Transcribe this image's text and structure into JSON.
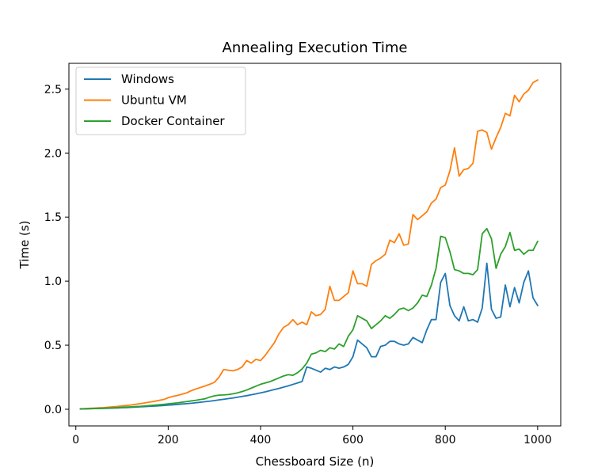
{
  "chart_data": {
    "type": "line",
    "title": "Annealing Execution Time",
    "xlabel": "Chessboard Size (n)",
    "ylabel": "Time (s)",
    "xlim": [
      -15,
      1050
    ],
    "ylim": [
      -0.13,
      2.7
    ],
    "x_ticks": [
      0,
      200,
      400,
      600,
      800,
      1000
    ],
    "x_tick_labels": [
      "0",
      "200",
      "400",
      "600",
      "800",
      "1000"
    ],
    "y_ticks": [
      0.0,
      0.5,
      1.0,
      1.5,
      2.0,
      2.5
    ],
    "y_tick_labels": [
      "0.0",
      "0.5",
      "1.0",
      "1.5",
      "2.0",
      "2.5"
    ],
    "grid": false,
    "legend_position": "upper-left",
    "x": [
      10,
      20,
      30,
      40,
      50,
      60,
      70,
      80,
      90,
      100,
      110,
      120,
      130,
      140,
      150,
      160,
      170,
      180,
      190,
      200,
      210,
      220,
      230,
      240,
      250,
      260,
      270,
      280,
      290,
      300,
      310,
      320,
      330,
      340,
      350,
      360,
      370,
      380,
      390,
      400,
      410,
      420,
      430,
      440,
      450,
      460,
      470,
      480,
      490,
      500,
      510,
      520,
      530,
      540,
      550,
      560,
      570,
      580,
      590,
      600,
      610,
      620,
      630,
      640,
      650,
      660,
      670,
      680,
      690,
      700,
      710,
      720,
      730,
      740,
      750,
      760,
      770,
      780,
      790,
      800,
      810,
      820,
      830,
      840,
      850,
      860,
      870,
      880,
      890,
      900,
      910,
      920,
      930,
      940,
      950,
      960,
      970,
      980,
      990,
      1000
    ],
    "series": [
      {
        "name": "Windows",
        "color": "#1f77b4",
        "values": [
          0.002,
          0.003,
          0.004,
          0.005,
          0.006,
          0.007,
          0.008,
          0.009,
          0.01,
          0.012,
          0.013,
          0.015,
          0.017,
          0.019,
          0.021,
          0.023,
          0.025,
          0.027,
          0.029,
          0.032,
          0.035,
          0.038,
          0.041,
          0.044,
          0.047,
          0.051,
          0.055,
          0.059,
          0.063,
          0.068,
          0.073,
          0.078,
          0.083,
          0.088,
          0.094,
          0.1,
          0.106,
          0.113,
          0.12,
          0.128,
          0.136,
          0.145,
          0.154,
          0.163,
          0.173,
          0.183,
          0.194,
          0.205,
          0.217,
          0.33,
          0.32,
          0.305,
          0.29,
          0.32,
          0.31,
          0.33,
          0.32,
          0.33,
          0.35,
          0.41,
          0.54,
          0.51,
          0.48,
          0.41,
          0.41,
          0.49,
          0.5,
          0.53,
          0.53,
          0.51,
          0.5,
          0.51,
          0.56,
          0.54,
          0.52,
          0.62,
          0.7,
          0.7,
          0.99,
          1.06,
          0.81,
          0.73,
          0.69,
          0.8,
          0.69,
          0.7,
          0.68,
          0.79,
          1.14,
          0.78,
          0.71,
          0.72,
          0.97,
          0.8,
          0.95,
          0.83,
          0.99,
          1.08,
          0.87,
          0.81
        ]
      },
      {
        "name": "Ubuntu VM",
        "color": "#ff7f0e",
        "values": [
          0.004,
          0.005,
          0.007,
          0.009,
          0.011,
          0.013,
          0.016,
          0.019,
          0.022,
          0.026,
          0.03,
          0.034,
          0.039,
          0.044,
          0.05,
          0.056,
          0.062,
          0.069,
          0.076,
          0.09,
          0.1,
          0.108,
          0.118,
          0.128,
          0.145,
          0.158,
          0.17,
          0.182,
          0.195,
          0.21,
          0.25,
          0.31,
          0.305,
          0.3,
          0.31,
          0.33,
          0.38,
          0.36,
          0.39,
          0.38,
          0.42,
          0.47,
          0.52,
          0.59,
          0.64,
          0.66,
          0.7,
          0.66,
          0.68,
          0.66,
          0.76,
          0.73,
          0.74,
          0.78,
          0.96,
          0.85,
          0.85,
          0.88,
          0.91,
          1.08,
          0.98,
          0.98,
          0.96,
          1.13,
          1.16,
          1.18,
          1.21,
          1.32,
          1.3,
          1.37,
          1.28,
          1.29,
          1.52,
          1.48,
          1.51,
          1.54,
          1.61,
          1.64,
          1.73,
          1.75,
          1.86,
          2.04,
          1.82,
          1.87,
          1.88,
          1.92,
          2.17,
          2.18,
          2.16,
          2.03,
          2.12,
          2.2,
          2.31,
          2.29,
          2.45,
          2.4,
          2.46,
          2.49,
          2.55,
          2.57
        ]
      },
      {
        "name": "Docker Container",
        "color": "#2ca02c",
        "values": [
          0.003,
          0.004,
          0.005,
          0.006,
          0.007,
          0.008,
          0.01,
          0.011,
          0.013,
          0.015,
          0.017,
          0.019,
          0.021,
          0.023,
          0.026,
          0.029,
          0.032,
          0.035,
          0.038,
          0.042,
          0.046,
          0.05,
          0.055,
          0.06,
          0.065,
          0.07,
          0.076,
          0.082,
          0.095,
          0.105,
          0.11,
          0.112,
          0.115,
          0.12,
          0.128,
          0.138,
          0.15,
          0.165,
          0.18,
          0.195,
          0.205,
          0.215,
          0.23,
          0.245,
          0.26,
          0.27,
          0.265,
          0.285,
          0.315,
          0.36,
          0.43,
          0.44,
          0.46,
          0.45,
          0.48,
          0.47,
          0.51,
          0.49,
          0.57,
          0.62,
          0.73,
          0.71,
          0.69,
          0.63,
          0.66,
          0.69,
          0.73,
          0.71,
          0.74,
          0.78,
          0.79,
          0.77,
          0.79,
          0.83,
          0.89,
          0.88,
          0.97,
          1.1,
          1.35,
          1.34,
          1.23,
          1.09,
          1.08,
          1.06,
          1.06,
          1.05,
          1.09,
          1.37,
          1.41,
          1.33,
          1.1,
          1.21,
          1.27,
          1.38,
          1.24,
          1.25,
          1.21,
          1.24,
          1.24,
          1.31
        ]
      }
    ]
  }
}
